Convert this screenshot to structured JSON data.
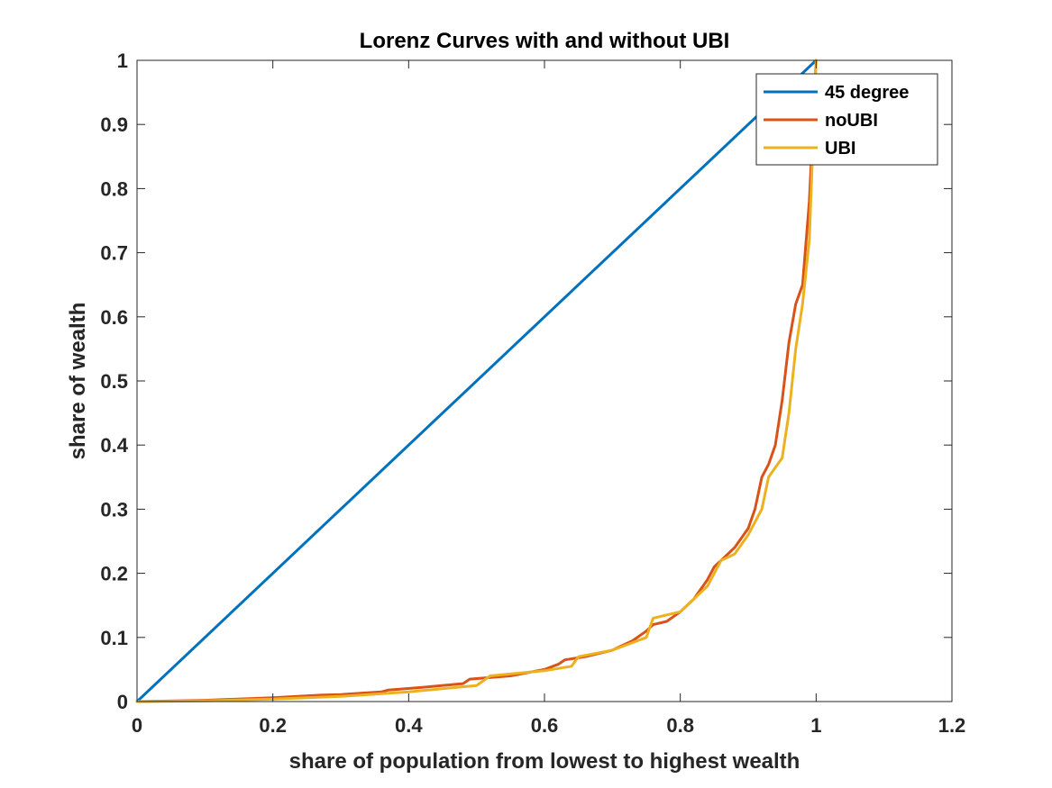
{
  "chart_data": {
    "type": "line",
    "title": "Lorenz Curves with and without UBI",
    "xlabel": "share of population from lowest to highest wealth",
    "ylabel": "share of wealth",
    "xlim": [
      0,
      1.2
    ],
    "ylim": [
      0,
      1
    ],
    "xticks": [
      "0",
      "0.2",
      "0.4",
      "0.6",
      "0.8",
      "1",
      "1.2"
    ],
    "yticks": [
      "0",
      "0.1",
      "0.2",
      "0.3",
      "0.4",
      "0.5",
      "0.6",
      "0.7",
      "0.8",
      "0.9",
      "1"
    ],
    "grid": false,
    "legend_position": "top-right",
    "series": [
      {
        "name": "45 degree",
        "color": "#0072BD",
        "x": [
          0,
          1
        ],
        "y": [
          0,
          1
        ]
      },
      {
        "name": "noUBI",
        "color": "#D95319",
        "x": [
          0,
          0.1,
          0.2,
          0.27,
          0.3,
          0.36,
          0.37,
          0.42,
          0.48,
          0.49,
          0.55,
          0.6,
          0.62,
          0.63,
          0.66,
          0.7,
          0.73,
          0.75,
          0.76,
          0.78,
          0.8,
          0.82,
          0.84,
          0.85,
          0.86,
          0.88,
          0.9,
          0.91,
          0.92,
          0.93,
          0.94,
          0.95,
          0.96,
          0.97,
          0.98,
          0.99,
          1.0
        ],
        "y": [
          0,
          0.002,
          0.006,
          0.01,
          0.011,
          0.015,
          0.018,
          0.022,
          0.028,
          0.035,
          0.04,
          0.05,
          0.058,
          0.065,
          0.07,
          0.08,
          0.095,
          0.11,
          0.12,
          0.125,
          0.14,
          0.16,
          0.19,
          0.21,
          0.22,
          0.24,
          0.27,
          0.3,
          0.35,
          0.37,
          0.4,
          0.47,
          0.56,
          0.62,
          0.65,
          0.78,
          1.0
        ]
      },
      {
        "name": "UBI",
        "color": "#EDB120",
        "x": [
          0,
          0.1,
          0.2,
          0.3,
          0.4,
          0.5,
          0.52,
          0.6,
          0.64,
          0.65,
          0.7,
          0.75,
          0.76,
          0.8,
          0.84,
          0.86,
          0.88,
          0.9,
          0.92,
          0.93,
          0.95,
          0.96,
          0.97,
          0.98,
          0.99,
          1.0
        ],
        "y": [
          0,
          0.001,
          0.004,
          0.008,
          0.015,
          0.025,
          0.04,
          0.048,
          0.055,
          0.07,
          0.08,
          0.1,
          0.13,
          0.14,
          0.18,
          0.22,
          0.23,
          0.26,
          0.3,
          0.35,
          0.38,
          0.45,
          0.55,
          0.62,
          0.72,
          1.0
        ]
      }
    ]
  }
}
